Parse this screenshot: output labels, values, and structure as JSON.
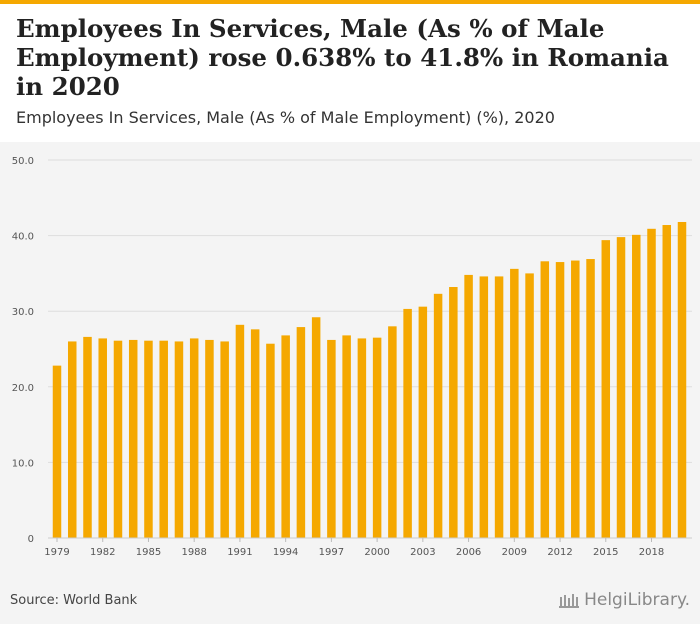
{
  "headline": "Employees In Services, Male (As % of Male Employment) rose 0.638% to 41.8% in Romania in 2020",
  "chart_data": {
    "type": "bar",
    "title": "Employees In Services, Male (As % of Male Employment) (%), 2020",
    "xlabel": "",
    "ylabel": "",
    "ylim": [
      0,
      50
    ],
    "yticks": [
      "0",
      "10.0",
      "20.0",
      "30.0",
      "40.0",
      "50.0"
    ],
    "xtick_labels": [
      "1979",
      "1982",
      "1985",
      "1988",
      "1991",
      "1994",
      "1997",
      "2000",
      "2003",
      "2006",
      "2009",
      "2012",
      "2015",
      "2018"
    ],
    "categories": [
      "1979",
      "1980",
      "1981",
      "1982",
      "1983",
      "1984",
      "1985",
      "1986",
      "1987",
      "1988",
      "1989",
      "1990",
      "1991",
      "1992",
      "1993",
      "1994",
      "1995",
      "1996",
      "1997",
      "1998",
      "1999",
      "2000",
      "2001",
      "2002",
      "2003",
      "2004",
      "2005",
      "2006",
      "2007",
      "2008",
      "2009",
      "2010",
      "2011",
      "2012",
      "2013",
      "2014",
      "2015",
      "2016",
      "2017",
      "2018",
      "2019",
      "2020"
    ],
    "values": [
      22.8,
      26.0,
      26.6,
      26.4,
      26.1,
      26.2,
      26.1,
      26.1,
      26.0,
      26.4,
      26.2,
      26.0,
      28.2,
      27.6,
      25.7,
      26.8,
      27.9,
      29.2,
      26.2,
      26.8,
      26.4,
      26.5,
      28.0,
      30.3,
      30.6,
      32.3,
      33.2,
      34.8,
      34.6,
      34.6,
      35.6,
      35.0,
      36.6,
      36.5,
      36.7,
      36.9,
      39.4,
      39.8,
      40.1,
      40.9,
      41.4,
      41.8
    ],
    "bar_color": "#f5a800"
  },
  "footer": {
    "source": "Source: World Bank",
    "logo_text": "HelgiLibrary."
  }
}
